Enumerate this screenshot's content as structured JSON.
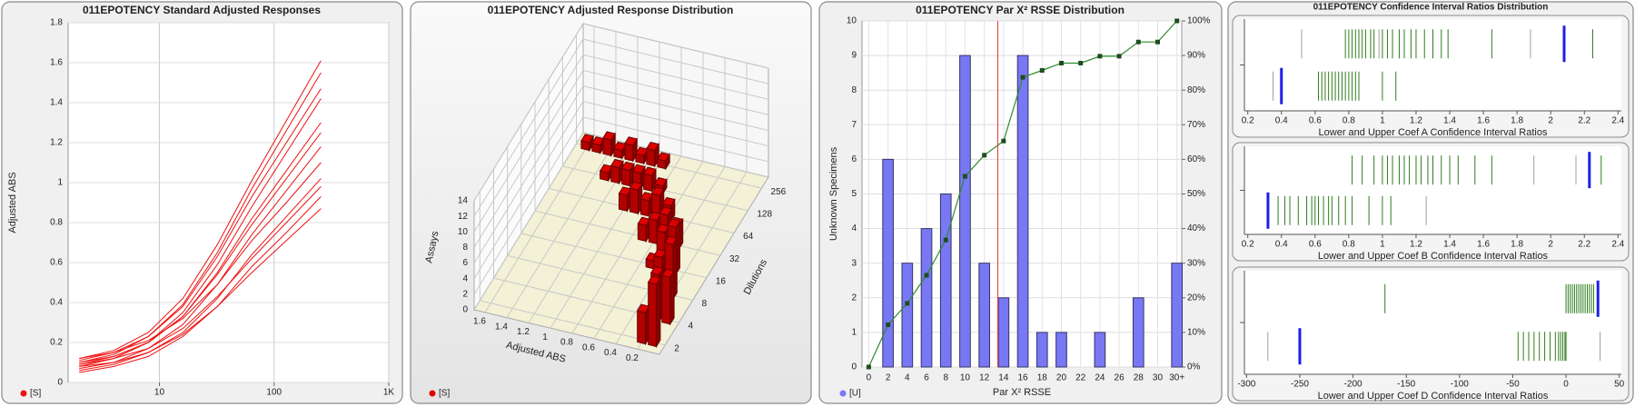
{
  "chart_data": [
    {
      "type": "line",
      "title": "011EPOTENCY Standard Adjusted Responses",
      "ylabel": "Adjusted ABS",
      "legend_label": "[S]",
      "color": "#ee1111",
      "xlog": true,
      "xlim": [
        1.6,
        1000
      ],
      "xticks": [
        10,
        100,
        {
          "value": 1000,
          "label": "1K"
        }
      ],
      "ylim": [
        0,
        1.8
      ],
      "yticks": [
        0,
        0.2,
        0.4,
        0.6,
        0.8,
        1,
        1.2,
        1.4,
        1.6,
        1.8
      ],
      "grid": true,
      "x": [
        2,
        4,
        8,
        16,
        32,
        64,
        128,
        256
      ],
      "series": [
        {
          "values": [
            0.12,
            0.16,
            0.25,
            0.42,
            0.69,
            1.01,
            1.31,
            1.61
          ]
        },
        {
          "values": [
            0.1,
            0.14,
            0.23,
            0.39,
            0.65,
            0.97,
            1.26,
            1.55
          ]
        },
        {
          "values": [
            0.11,
            0.15,
            0.23,
            0.38,
            0.63,
            0.93,
            1.2,
            1.47
          ]
        },
        {
          "values": [
            0.08,
            0.12,
            0.2,
            0.35,
            0.59,
            0.88,
            1.15,
            1.42
          ]
        },
        {
          "values": [
            0.09,
            0.13,
            0.2,
            0.33,
            0.55,
            0.82,
            1.06,
            1.3
          ]
        },
        {
          "values": [
            0.1,
            0.13,
            0.2,
            0.33,
            0.54,
            0.79,
            1.02,
            1.25
          ]
        },
        {
          "values": [
            0.07,
            0.1,
            0.17,
            0.29,
            0.49,
            0.74,
            0.96,
            1.18
          ]
        },
        {
          "values": [
            0.12,
            0.15,
            0.21,
            0.32,
            0.49,
            0.71,
            0.9,
            1.1
          ]
        },
        {
          "values": [
            0.06,
            0.09,
            0.15,
            0.25,
            0.42,
            0.64,
            0.83,
            1.02
          ]
        },
        {
          "values": [
            0.09,
            0.12,
            0.17,
            0.27,
            0.43,
            0.62,
            0.8,
            0.98
          ]
        },
        {
          "values": [
            0.05,
            0.08,
            0.13,
            0.23,
            0.38,
            0.58,
            0.75,
            0.93
          ]
        },
        {
          "values": [
            0.08,
            0.1,
            0.15,
            0.24,
            0.38,
            0.55,
            0.71,
            0.87
          ]
        }
      ]
    },
    {
      "type": "bar3d",
      "title": "011EPOTENCY Adjusted Response Distribution",
      "legend_label": "[S]",
      "color": "#dd0000",
      "xlabel": "Adjusted ABS",
      "xlim": [
        0,
        1.7
      ],
      "xticks": [
        0.2,
        0.4,
        0.6,
        0.8,
        1,
        1.2,
        1.4,
        1.6
      ],
      "ylabel": "Dilutions",
      "ylog": true,
      "ylim": [
        1.5,
        360
      ],
      "yticks": [
        2,
        4,
        8,
        16,
        32,
        64,
        128,
        256
      ],
      "zlabel": "Assays",
      "zlim": [
        0,
        14
      ],
      "zticks": [
        0,
        2,
        4,
        6,
        8,
        10,
        12,
        14
      ],
      "x": [
        0.1,
        0.2,
        0.1,
        0.2,
        0.2,
        0.3,
        0.3,
        0.4,
        0.5,
        0.4,
        0.5,
        0.6,
        0.7,
        0.6,
        0.7,
        0.8,
        0.9,
        1,
        0.8,
        0.9,
        1,
        1.1,
        1.2,
        1.3,
        0.9,
        1,
        1.1,
        1.2,
        1.3,
        1.4,
        1.5,
        1.6
      ],
      "y": [
        2,
        2,
        4,
        4,
        8,
        8,
        16,
        16,
        16,
        32,
        32,
        32,
        32,
        64,
        64,
        64,
        64,
        64,
        128,
        128,
        128,
        128,
        128,
        128,
        256,
        256,
        256,
        256,
        256,
        256,
        256,
        256
      ],
      "values": [
        8,
        4,
        6,
        6,
        7,
        5,
        6,
        5,
        1,
        3,
        4,
        3,
        2,
        2,
        3,
        2,
        3,
        2,
        1,
        2,
        2,
        2,
        2,
        1,
        1,
        2,
        1,
        2,
        1,
        2,
        1,
        1
      ]
    },
    {
      "type": "bar_line",
      "title": "011EPOTENCY Par X² RSSE Distribution",
      "xlabel": "Par X² RSSE",
      "ylabel": "Unknown Specimens",
      "x": [
        0,
        2,
        4,
        6,
        8,
        10,
        12,
        14,
        16,
        18,
        20,
        22,
        24,
        26,
        28,
        30,
        32
      ],
      "xlim": [
        -0.7,
        32.5
      ],
      "xticks": [
        0,
        2,
        4,
        6,
        8,
        10,
        12,
        14,
        16,
        18,
        20,
        22,
        24,
        26,
        28,
        30,
        {
          "value": 32,
          "label": "30+"
        }
      ],
      "ylim": [
        0,
        10
      ],
      "yticks": [
        0,
        1,
        2,
        3,
        4,
        5,
        6,
        7,
        8,
        9,
        10
      ],
      "y2lim": [
        0,
        100
      ],
      "y2ticks": [
        {
          "value": 0,
          "label": "0%"
        },
        {
          "value": 10,
          "label": "10%"
        },
        {
          "value": 20,
          "label": "20%"
        },
        {
          "value": 30,
          "label": "30%"
        },
        {
          "value": 40,
          "label": "40%"
        },
        {
          "value": 50,
          "label": "50%"
        },
        {
          "value": 60,
          "label": "60%"
        },
        {
          "value": 70,
          "label": "70%"
        },
        {
          "value": 80,
          "label": "80%"
        },
        {
          "value": 90,
          "label": "90%"
        },
        {
          "value": 100,
          "label": "100%"
        }
      ],
      "grid": true,
      "reference_x": 13.4,
      "reference_color": "#ee3333",
      "series": [
        {
          "name": "[U]",
          "color": "#7878f4",
          "values": [
            0,
            6,
            3,
            4,
            5,
            9,
            3,
            2,
            9,
            1,
            1,
            0,
            1,
            0,
            2,
            0,
            3
          ]
        },
        {
          "axis": "y2",
          "color": "#2e8b2e",
          "values": [
            0,
            12.2,
            18.4,
            26.5,
            36.7,
            55.1,
            61.2,
            65.3,
            83.7,
            85.7,
            87.8,
            87.8,
            89.8,
            89.8,
            93.9,
            93.9,
            100
          ]
        }
      ]
    },
    {
      "type": "strip",
      "title": "011EPOTENCY Confidence Interval Ratios Distribution",
      "color": "#2e7d1e",
      "other_color": "#a0a0a0",
      "marker_color": "#1f1fe6",
      "subplots": [
        {
          "xlabel": "Lower and Upper Coef A Confidence Interval Ratios",
          "xlim": [
            0.18,
            2.42
          ],
          "xticks": [
            0.2,
            0.4,
            0.6,
            0.8,
            1,
            1.2,
            1.4,
            1.6,
            1.8,
            2,
            2.2,
            2.4
          ],
          "rows": [
            {
              "values": [
                0.78,
                0.8,
                0.82,
                0.84,
                0.86,
                0.88,
                0.9,
                0.93,
                0.95,
                1,
                1.03,
                1.06,
                1.1,
                1.13,
                1.17,
                1.2,
                1.25,
                1.3,
                1.35,
                1.39,
                1.65,
                2.25
              ],
              "others": [
                0.52,
                0.98,
                1.88
              ],
              "marker": 2.08
            },
            {
              "values": [
                0.62,
                0.64,
                0.66,
                0.68,
                0.7,
                0.72,
                0.74,
                0.76,
                0.78,
                0.8,
                0.82,
                0.84,
                0.86,
                1,
                1.08
              ],
              "others": [
                0.35
              ],
              "marker": 0.4
            }
          ]
        },
        {
          "xlabel": "Lower and Upper Coef B Confidence Interval Ratios",
          "xlim": [
            0.18,
            2.42
          ],
          "xticks": [
            0.2,
            0.4,
            0.6,
            0.8,
            1,
            1.2,
            1.4,
            1.6,
            1.8,
            2,
            2.2,
            2.4
          ],
          "rows": [
            {
              "values": [
                0.82,
                0.88,
                0.95,
                1,
                1.03,
                1.06,
                1.1,
                1.13,
                1.16,
                1.2,
                1.23,
                1.27,
                1.3,
                1.35,
                1.4,
                1.45,
                1.55,
                1.65,
                2.3
              ],
              "others": [
                1.9,
                2.15
              ],
              "marker": 2.23
            },
            {
              "values": [
                0.38,
                0.42,
                0.45,
                0.5,
                0.55,
                0.58,
                0.6,
                0.62,
                0.65,
                0.68,
                0.7,
                0.74,
                0.78,
                0.82,
                0.92,
                1,
                1.05
              ],
              "others": [
                1.26
              ],
              "marker": 0.32
            }
          ]
        },
        {
          "xlabel": "Lower and Upper Coef D Confidence Interval Ratios",
          "xlim": [
            -302,
            52
          ],
          "xticks": [
            -300,
            -250,
            -200,
            -150,
            -100,
            -50,
            0,
            50
          ],
          "rows": [
            {
              "values": [
                -170,
                0,
                2,
                4,
                6,
                8,
                10,
                12,
                14,
                16,
                18,
                20,
                22,
                24,
                26
              ],
              "others": [],
              "marker": 30
            },
            {
              "values": [
                -45,
                -40,
                -35,
                -30,
                -25,
                -20,
                -15,
                -10,
                -7,
                -5,
                -3,
                -1,
                0
              ],
              "others": [
                -280,
                32
              ],
              "marker": -250
            }
          ]
        }
      ]
    }
  ]
}
